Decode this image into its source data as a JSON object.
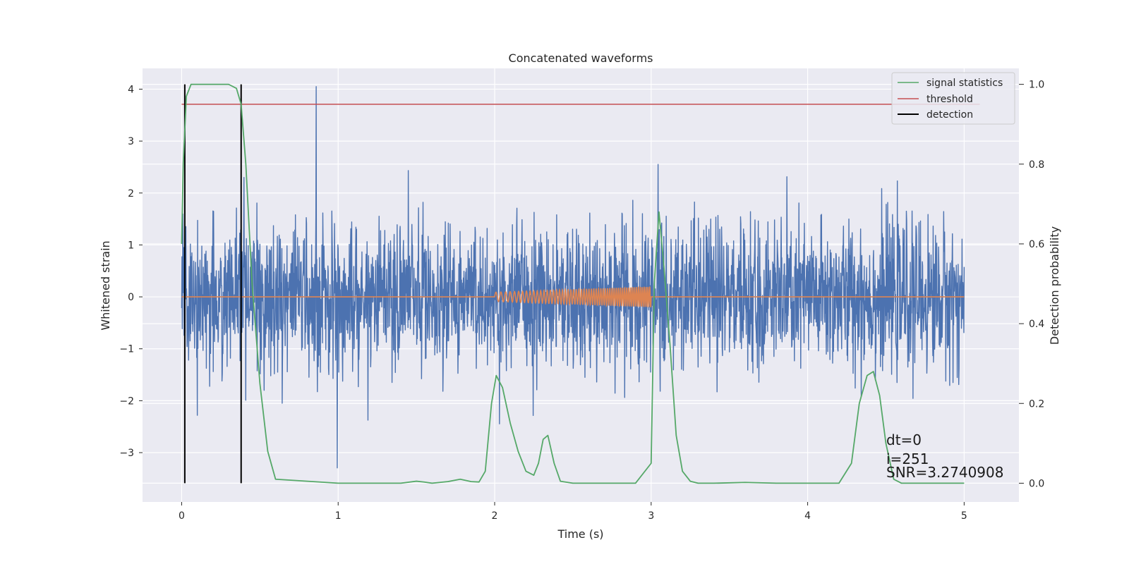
{
  "chart_data": {
    "type": "line",
    "title": "Concatenated waveforms",
    "xlabel": "Time (s)",
    "ylabel": "Whitened strain",
    "y2label": "Detection probability",
    "xlim": [
      -0.25,
      5.35
    ],
    "ylim": [
      -3.95,
      4.4
    ],
    "y2lim": [
      -0.047,
      1.04
    ],
    "xticks": [
      0,
      1,
      2,
      3,
      4,
      5
    ],
    "xtick_labels": [
      "0",
      "1",
      "2",
      "3",
      "4",
      "5"
    ],
    "yticks": [
      -3,
      -2,
      -1,
      0,
      1,
      2,
      3,
      4
    ],
    "ytick_labels": [
      "−3",
      "−2",
      "−1",
      "0",
      "1",
      "2",
      "3",
      "4"
    ],
    "y2ticks": [
      0.0,
      0.2,
      0.4,
      0.6,
      0.8,
      1.0
    ],
    "y2tick_labels": [
      "0.0",
      "0.2",
      "0.4",
      "0.6",
      "0.8",
      "1.0"
    ],
    "grid": true,
    "legend_position": "top-right",
    "legend": [
      "signal statistics",
      "threshold",
      "detection"
    ],
    "colors": {
      "noise": "#4c72b0",
      "injection": "#dd8452",
      "signal_statistics": "#55a868",
      "threshold": "#c44e52",
      "detection": "#000000",
      "background": "#eaeaf2",
      "grid": "#ffffff"
    },
    "noise_series": {
      "x_range": [
        0,
        5
      ],
      "typical_range": [
        -1.5,
        1.5
      ],
      "extreme_range": [
        -3.6,
        4.05
      ],
      "spike": {
        "x": 0.86,
        "y": 4.05
      }
    },
    "injection_series": {
      "x_range": [
        2.0,
        3.0
      ],
      "amplitude_start": 0.09,
      "amplitude_end": 0.2
    },
    "signal_statistics": {
      "axis": "right",
      "x": [
        0,
        0.01,
        0.03,
        0.06,
        0.1,
        0.2,
        0.3,
        0.35,
        0.38,
        0.41,
        0.45,
        0.5,
        0.55,
        0.6,
        1.0,
        1.4,
        1.5,
        1.55,
        1.6,
        1.7,
        1.78,
        1.85,
        1.9,
        1.94,
        1.98,
        2.01,
        2.05,
        2.1,
        2.15,
        2.2,
        2.25,
        2.28,
        2.31,
        2.34,
        2.38,
        2.42,
        2.5,
        2.7,
        2.9,
        3.0,
        3.02,
        3.05,
        3.08,
        3.12,
        3.16,
        3.2,
        3.25,
        3.3,
        3.4,
        3.6,
        3.8,
        4.0,
        4.2,
        4.28,
        4.33,
        4.38,
        4.42,
        4.46,
        4.5,
        4.55,
        4.6,
        5.0
      ],
      "y": [
        0.6,
        0.8,
        0.97,
        1.0,
        1.0,
        1.0,
        1.0,
        0.99,
        0.95,
        0.8,
        0.5,
        0.25,
        0.08,
        0.01,
        0.0,
        0.0,
        0.005,
        0.003,
        0.0,
        0.004,
        0.01,
        0.004,
        0.003,
        0.03,
        0.2,
        0.27,
        0.24,
        0.15,
        0.08,
        0.03,
        0.02,
        0.05,
        0.11,
        0.12,
        0.05,
        0.005,
        0.0,
        0.0,
        0.0,
        0.05,
        0.5,
        0.68,
        0.55,
        0.35,
        0.12,
        0.03,
        0.005,
        0.0,
        0.0,
        0.002,
        0.0,
        0.0,
        0.0,
        0.05,
        0.2,
        0.27,
        0.28,
        0.22,
        0.1,
        0.01,
        0.0,
        0.0
      ]
    },
    "threshold": {
      "axis": "right",
      "value": 0.95,
      "x_range": [
        0,
        5.1
      ]
    },
    "detections": [
      0.02,
      0.38
    ],
    "annotations": [
      "dt=0",
      "i=251",
      "SNR=3.2740908"
    ]
  }
}
